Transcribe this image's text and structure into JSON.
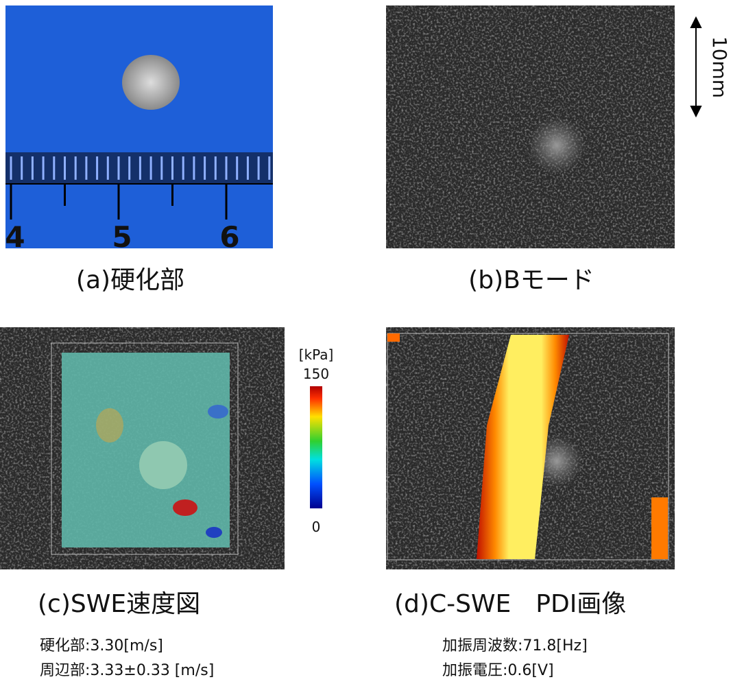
{
  "panels": [
    {
      "caption": "(a)硬化部",
      "ruler_labels": [
        "4",
        "5",
        "6"
      ]
    },
    {
      "caption": "(b)Bモード",
      "scale_label": "10mm"
    },
    {
      "caption": "(c)SWE速度図",
      "colorbar": {
        "unit": "[kPa]",
        "max": "150",
        "min": "0"
      },
      "notes": [
        "硬化部:3.30[m/s]",
        "周辺部:3.33±0.33 [m/s]"
      ]
    },
    {
      "caption": "(d)C-SWE　PDI画像",
      "notes": [
        "加振周波数:71.8[Hz]",
        "加振電圧:0.6[V]"
      ]
    }
  ]
}
